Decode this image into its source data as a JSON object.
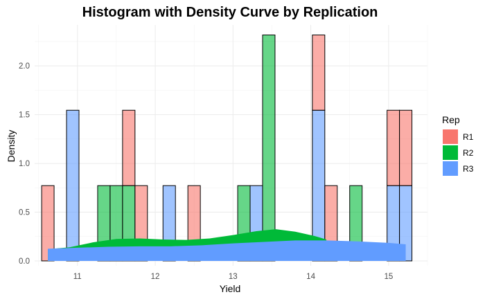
{
  "chart_data": {
    "type": "histogram",
    "title": "Histogram with Density Curve by Replication",
    "xlabel": "Yield",
    "ylabel": "Density",
    "xlim": [
      10.45,
      15.5
    ],
    "ylim": [
      -0.05,
      2.42
    ],
    "x_ticks": [
      "11",
      "12",
      "13",
      "14",
      "15"
    ],
    "x_tick_values": [
      11,
      12,
      13,
      14,
      15
    ],
    "y_ticks": [
      "0.0",
      "0.5",
      "1.0",
      "1.5",
      "2.0"
    ],
    "y_tick_values": [
      0,
      0.5,
      1.0,
      1.5,
      2.0
    ],
    "grid": true,
    "legend": {
      "title": "Rep",
      "position": "right",
      "entries": [
        {
          "name": "R1",
          "color": "#F8766D"
        },
        {
          "name": "R2",
          "color": "#00BA38"
        },
        {
          "name": "R3",
          "color": "#619CFF"
        }
      ]
    },
    "bars": [
      {
        "x0": 10.54,
        "x1": 10.7,
        "series": "R1",
        "ymin": 0,
        "ymax": 0.772
      },
      {
        "x0": 10.86,
        "x1": 11.02,
        "series": "R3",
        "ymin": 0,
        "ymax": 1.545
      },
      {
        "x0": 11.26,
        "x1": 11.42,
        "series": "R2",
        "ymin": 0,
        "ymax": 0.772
      },
      {
        "x0": 11.42,
        "x1": 11.58,
        "series": "R2",
        "ymin": 0,
        "ymax": 0.772
      },
      {
        "x0": 11.58,
        "x1": 11.74,
        "series": "R2",
        "ymin": 0,
        "ymax": 0.772
      },
      {
        "x0": 11.58,
        "x1": 11.74,
        "series": "R1",
        "ymin": 0.772,
        "ymax": 1.545
      },
      {
        "x0": 11.74,
        "x1": 11.9,
        "series": "R1",
        "ymin": 0,
        "ymax": 0.772
      },
      {
        "x0": 12.1,
        "x1": 12.26,
        "series": "R3",
        "ymin": 0,
        "ymax": 0.772
      },
      {
        "x0": 12.42,
        "x1": 12.58,
        "series": "R1",
        "ymin": 0,
        "ymax": 0.772
      },
      {
        "x0": 13.06,
        "x1": 13.22,
        "series": "R2",
        "ymin": 0,
        "ymax": 0.772
      },
      {
        "x0": 13.22,
        "x1": 13.38,
        "series": "R3",
        "ymin": 0,
        "ymax": 0.772
      },
      {
        "x0": 13.38,
        "x1": 13.54,
        "series": "R2",
        "ymin": 0,
        "ymax": 2.317
      },
      {
        "x0": 14.02,
        "x1": 14.18,
        "series": "R3",
        "ymin": 0,
        "ymax": 1.545
      },
      {
        "x0": 14.02,
        "x1": 14.18,
        "series": "R1",
        "ymin": 1.545,
        "ymax": 2.317
      },
      {
        "x0": 14.18,
        "x1": 14.34,
        "series": "R1",
        "ymin": 0,
        "ymax": 0.772
      },
      {
        "x0": 14.5,
        "x1": 14.66,
        "series": "R2",
        "ymin": 0,
        "ymax": 0.772
      },
      {
        "x0": 14.98,
        "x1": 15.14,
        "series": "R3",
        "ymin": 0,
        "ymax": 0.772
      },
      {
        "x0": 14.98,
        "x1": 15.14,
        "series": "R1",
        "ymin": 0.772,
        "ymax": 1.545
      },
      {
        "x0": 15.14,
        "x1": 15.3,
        "series": "R3",
        "ymin": 0,
        "ymax": 0.772
      },
      {
        "x0": 15.14,
        "x1": 15.3,
        "series": "R1",
        "ymin": 0.772,
        "ymax": 1.545
      }
    ],
    "density_curves": [
      {
        "series": "R2",
        "x": [
          10.62,
          10.9,
          11.2,
          11.5,
          11.8,
          12.1,
          12.4,
          12.7,
          13.0,
          13.3,
          13.55,
          13.8,
          14.05,
          14.2
        ],
        "y": [
          0.12,
          0.14,
          0.19,
          0.225,
          0.23,
          0.22,
          0.215,
          0.23,
          0.265,
          0.305,
          0.325,
          0.3,
          0.255,
          0.22
        ]
      },
      {
        "series": "R3",
        "x": [
          10.62,
          11.0,
          11.4,
          11.8,
          12.2,
          12.6,
          13.0,
          13.4,
          13.8,
          14.2,
          14.6,
          15.0,
          15.22
        ],
        "y": [
          0.125,
          0.135,
          0.145,
          0.15,
          0.15,
          0.16,
          0.18,
          0.195,
          0.21,
          0.21,
          0.2,
          0.185,
          0.17
        ]
      }
    ]
  }
}
